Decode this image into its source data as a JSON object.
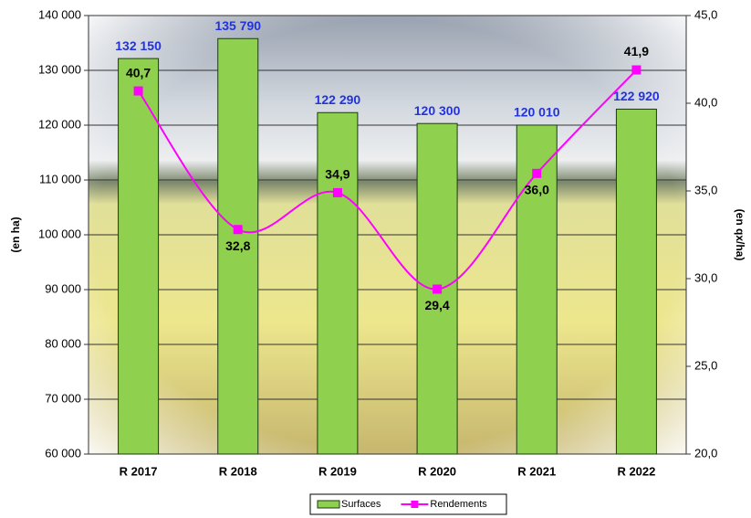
{
  "chart_data": {
    "type": "bar",
    "categories": [
      "R 2017",
      "R 2018",
      "R 2019",
      "R 2020",
      "R 2021",
      "R 2022"
    ],
    "series": [
      {
        "name": "Surfaces",
        "type": "bar",
        "color": "#8fd14f",
        "axis": "y",
        "values": [
          132150,
          135790,
          122290,
          120300,
          120010,
          122920
        ],
        "value_labels": [
          "132 150",
          "135 790",
          "122 290",
          "120 300",
          "120 010",
          "122 920"
        ]
      },
      {
        "name": "Rendements",
        "type": "line",
        "color": "#ff00ff",
        "axis": "y2",
        "values": [
          40.7,
          32.8,
          34.9,
          29.4,
          36.0,
          41.9
        ],
        "value_labels": [
          "40,7",
          "32,8",
          "34,9",
          "29,4",
          "36,0",
          "41,9"
        ]
      }
    ],
    "ylabel": "(en ha)",
    "y2label": "(en qx/ha)",
    "ylim": [
      60000,
      140000
    ],
    "yticks": [
      {
        "value": 60000,
        "label": "60 000"
      },
      {
        "value": 70000,
        "label": "70 000"
      },
      {
        "value": 80000,
        "label": "80 000"
      },
      {
        "value": 90000,
        "label": "90 000"
      },
      {
        "value": 100000,
        "label": "100 000"
      },
      {
        "value": 110000,
        "label": "110 000"
      },
      {
        "value": 120000,
        "label": "120 000"
      },
      {
        "value": 130000,
        "label": "130 000"
      },
      {
        "value": 140000,
        "label": "140 000"
      }
    ],
    "y2lim": [
      20,
      45
    ],
    "y2ticks": [
      {
        "value": 20,
        "label": "20,0"
      },
      {
        "value": 25,
        "label": "25,0"
      },
      {
        "value": 30,
        "label": "30,0"
      },
      {
        "value": 35,
        "label": "35,0"
      },
      {
        "value": 40,
        "label": "40,0"
      },
      {
        "value": 45,
        "label": "45,0"
      }
    ],
    "grid": true,
    "legend": "bottom"
  }
}
